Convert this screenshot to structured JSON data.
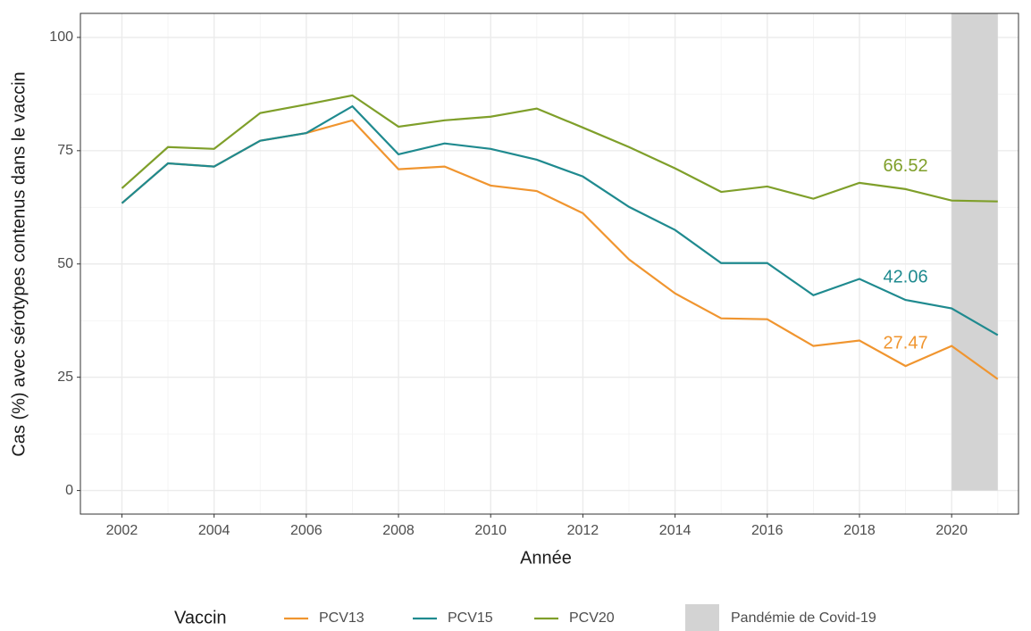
{
  "chart_data": {
    "type": "line",
    "x_label": "Année",
    "y_label": "Cas (%) avec sérotypes contenus dans le vaccin",
    "x": [
      2002,
      2003,
      2004,
      2005,
      2006,
      2007,
      2008,
      2009,
      2010,
      2011,
      2012,
      2013,
      2014,
      2015,
      2016,
      2017,
      2018,
      2019,
      2020,
      2021
    ],
    "legend_title": "Vaccin",
    "legend_position": "bottom",
    "grid": true,
    "series": [
      {
        "name": "PCV13",
        "color": "#f0952f",
        "values": [
          63.4,
          72.2,
          71.5,
          77.2,
          78.9,
          81.7,
          70.9,
          71.5,
          67.3,
          66.1,
          61.2,
          51.0,
          43.5,
          38.0,
          37.8,
          31.9,
          33.1,
          27.47,
          31.9,
          24.6
        ],
        "value_labels": [
          null,
          null,
          null,
          null,
          null,
          null,
          null,
          null,
          null,
          null,
          null,
          null,
          null,
          null,
          null,
          null,
          null,
          "27.47",
          null,
          null
        ]
      },
      {
        "name": "PCV15",
        "color": "#1f8a8f",
        "values": [
          63.4,
          72.2,
          71.5,
          77.2,
          78.9,
          84.8,
          74.2,
          76.6,
          75.4,
          73.0,
          69.3,
          62.6,
          57.5,
          50.2,
          50.2,
          43.1,
          46.7,
          42.06,
          40.2,
          34.3
        ],
        "value_labels": [
          null,
          null,
          null,
          null,
          null,
          null,
          null,
          null,
          null,
          null,
          null,
          null,
          null,
          null,
          null,
          null,
          null,
          "42.06",
          null,
          null
        ]
      },
      {
        "name": "PCV20",
        "color": "#7f9f2a",
        "values": [
          66.7,
          75.8,
          75.4,
          83.3,
          85.2,
          87.2,
          80.3,
          81.7,
          82.5,
          84.3,
          80.1,
          75.8,
          71.1,
          65.9,
          67.1,
          64.4,
          67.9,
          66.52,
          64.0,
          63.8
        ],
        "value_labels": [
          null,
          null,
          null,
          null,
          null,
          null,
          null,
          null,
          null,
          null,
          null,
          null,
          null,
          null,
          null,
          null,
          null,
          "66.52",
          null,
          null
        ]
      }
    ],
    "shaded_region": {
      "label": "Pandémie de Covid-19",
      "x": [
        2020,
        2021
      ],
      "ymin": 0,
      "color": "#d3d3d3"
    },
    "xlim": [
      2001.1,
      2021.45
    ],
    "xticks": [
      2002,
      2004,
      2006,
      2008,
      2010,
      2012,
      2014,
      2016,
      2018,
      2020
    ],
    "ylim": [
      -5.2,
      105.3
    ],
    "yticks": [
      0,
      25,
      50,
      75,
      100
    ]
  }
}
